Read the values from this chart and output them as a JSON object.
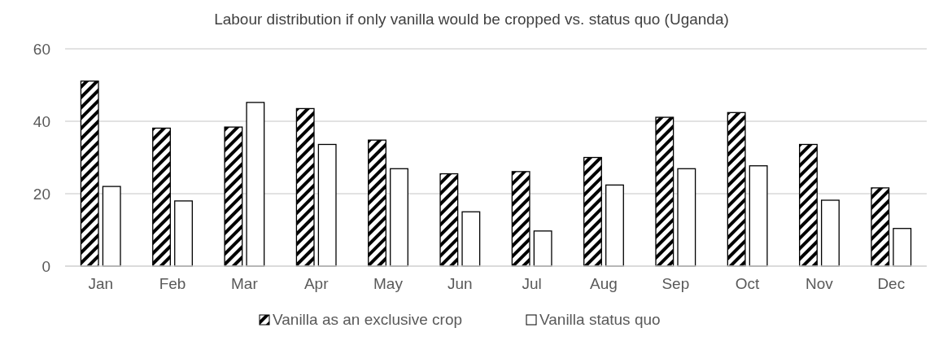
{
  "chart_data": {
    "type": "bar",
    "title": "Labour distribution if only vanilla would be cropped vs. status quo (Uganda)",
    "categories": [
      "Jan",
      "Feb",
      "Mar",
      "Apr",
      "May",
      "Jun",
      "Jul",
      "Aug",
      "Sep",
      "Oct",
      "Nov",
      "Dec"
    ],
    "series": [
      {
        "name": "Vanilla as an exclusive crop",
        "color": "#000000",
        "values": [
          51.1,
          38.1,
          38.4,
          43.5,
          34.8,
          25.5,
          26.1,
          30.0,
          41.1,
          42.4,
          33.6,
          21.6
        ]
      },
      {
        "name": "Vanilla status quo",
        "color": "#ffffff",
        "values": [
          22.0,
          18.0,
          45.2,
          33.6,
          26.9,
          15.0,
          9.7,
          22.4,
          26.9,
          27.7,
          18.2,
          10.4
        ]
      }
    ],
    "ylim": [
      0,
      60
    ],
    "yticks": [
      0,
      20,
      40,
      60
    ],
    "grid": "y",
    "legend": "bottom"
  }
}
